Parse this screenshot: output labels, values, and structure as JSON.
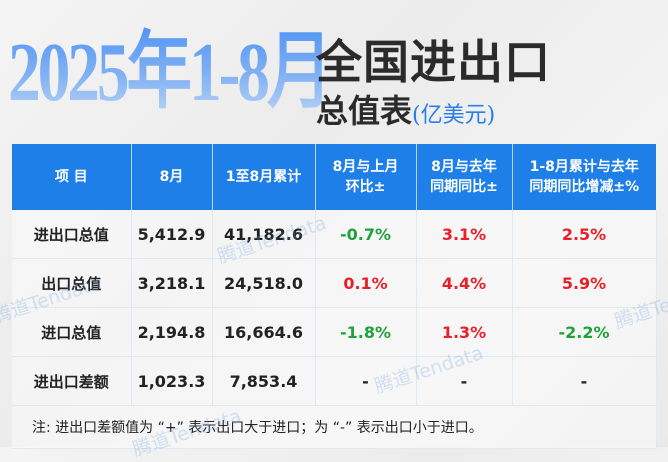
{
  "title": {
    "big": "2025年1-8月",
    "line1": "全国进出口",
    "line2": "总值表",
    "unit": "(亿美元)"
  },
  "table": {
    "headers": [
      "项 目",
      "8月",
      "1至8月累计",
      "8月与上月\n环比±",
      "8月与去年\n同期同比±",
      "1-8月累计与去年\n同期同比增减±%"
    ],
    "header_lines": [
      [
        "项 目"
      ],
      [
        "8月"
      ],
      [
        "1至8月累计"
      ],
      [
        "8月与上月",
        "环比±"
      ],
      [
        "8月与去年",
        "同期同比±"
      ],
      [
        "1-8月累计与去年",
        "同期同比增减±%"
      ]
    ],
    "rows": [
      {
        "item": "进出口总值",
        "aug": "5,412.9",
        "cum": "41,182.6",
        "mom": "-0.7%",
        "yoy": "3.1%",
        "cum_yoy": "2.5%"
      },
      {
        "item": "出口总值",
        "aug": "3,218.1",
        "cum": "24,518.0",
        "mom": "0.1%",
        "yoy": "4.4%",
        "cum_yoy": "5.9%"
      },
      {
        "item": "进口总值",
        "aug": "2,194.8",
        "cum": "16,664.6",
        "mom": "-1.8%",
        "yoy": "1.3%",
        "cum_yoy": "-2.2%"
      },
      {
        "item": "进出口差额",
        "aug": "1,023.3",
        "cum": "7,853.4",
        "mom": "-",
        "yoy": "-",
        "cum_yoy": "-"
      }
    ],
    "note": "注: 进出口差额值为 “+” 表示出口大于进口；为 “-” 表示出口小于进口。"
  },
  "watermark": "腾道Tendata",
  "colors": {
    "header": "#1f7fe8",
    "positive": "#e8202a",
    "negative": "#1ea33a",
    "unit": "#2b7de9"
  }
}
